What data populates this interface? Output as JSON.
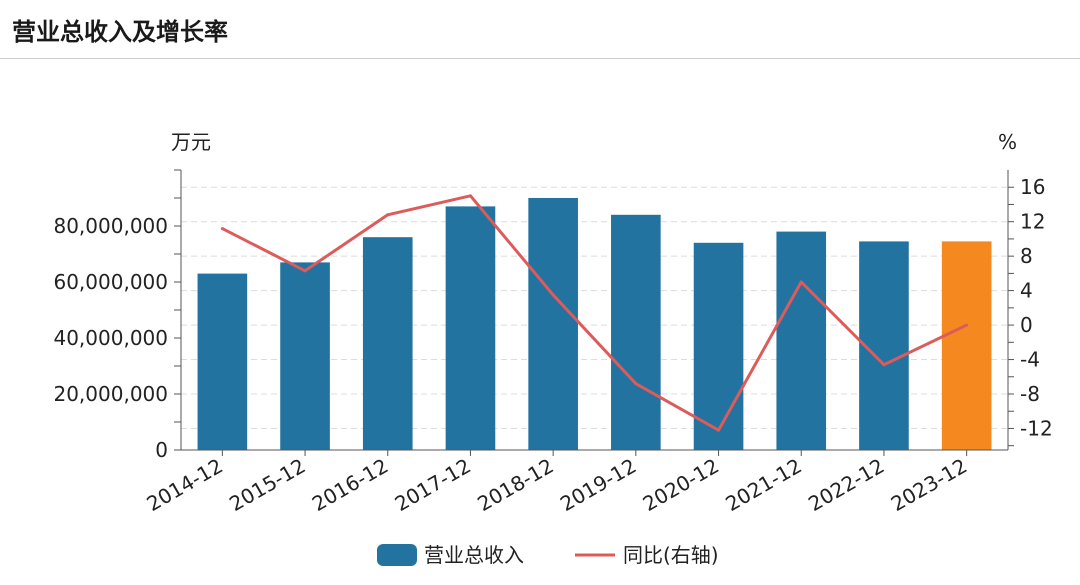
{
  "header": {
    "title": "营业总收入及增长率"
  },
  "chart_data": {
    "type": "bar",
    "categories": [
      "2014-12",
      "2015-12",
      "2016-12",
      "2017-12",
      "2018-12",
      "2019-12",
      "2020-12",
      "2021-12",
      "2022-12",
      "2023-12"
    ],
    "series": [
      {
        "name": "营业总收入",
        "type": "bar",
        "axis": "left",
        "values": [
          63000000,
          67000000,
          76000000,
          87000000,
          90000000,
          84000000,
          74000000,
          78000000,
          74500000,
          74500000
        ]
      },
      {
        "name": "同比(右轴)",
        "type": "line",
        "axis": "right",
        "values": [
          11.2,
          6.3,
          12.8,
          15.0,
          3.5,
          -6.8,
          -12.2,
          5.0,
          -4.6,
          0.0
        ]
      }
    ],
    "highlight_index": 9,
    "left_axis": {
      "unit_label": "万元",
      "ylim": [
        0,
        100000000
      ],
      "ticks": [
        0,
        20000000,
        40000000,
        60000000,
        80000000
      ],
      "tick_labels": [
        "0",
        "20,000,000",
        "40,000,000",
        "60,000,000",
        "80,000,000"
      ]
    },
    "right_axis": {
      "unit_label": "%",
      "ylim": [
        -14.5,
        18
      ],
      "ticks": [
        -12,
        -8,
        -4,
        0,
        4,
        8,
        12,
        16
      ],
      "tick_labels": [
        "-12",
        "-8",
        "-4",
        "0",
        "4",
        "8",
        "12",
        "16"
      ]
    },
    "grid": true,
    "legend_position": "bottom-center",
    "colors": {
      "bar": "#22739f",
      "bar_highlight": "#f5891f",
      "line": "#dd5b5b",
      "grid": "#dcdcdc",
      "axis": "#555555",
      "text": "#222222"
    }
  }
}
